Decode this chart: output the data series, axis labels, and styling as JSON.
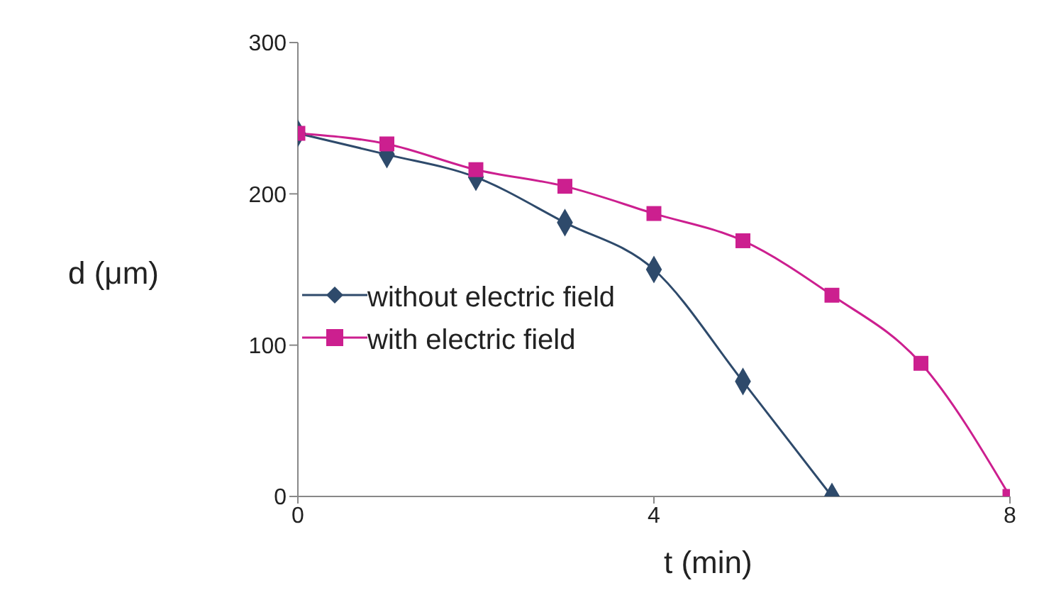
{
  "chart_data": {
    "type": "line",
    "xlabel": "t (min)",
    "ylabel": "d (μm)",
    "x": [
      0,
      1,
      2,
      3,
      4,
      5,
      6,
      7,
      8
    ],
    "xlim": [
      0,
      8
    ],
    "xticks": [
      0,
      4,
      8
    ],
    "ylim": [
      0,
      300
    ],
    "yticks": [
      0,
      100,
      200,
      300
    ],
    "grid": false,
    "legend": "left",
    "line_style": "solid",
    "series": [
      {
        "name": "without electric field",
        "color": "#2e4a6b",
        "marker": "diamond",
        "values": [
          240,
          226,
          211,
          181,
          150,
          76,
          0,
          null,
          null
        ]
      },
      {
        "name": "with electric field",
        "color": "#cc1f8f",
        "marker": "square",
        "values": [
          240,
          233,
          216,
          205,
          187,
          169,
          133,
          88,
          0
        ]
      }
    ]
  }
}
